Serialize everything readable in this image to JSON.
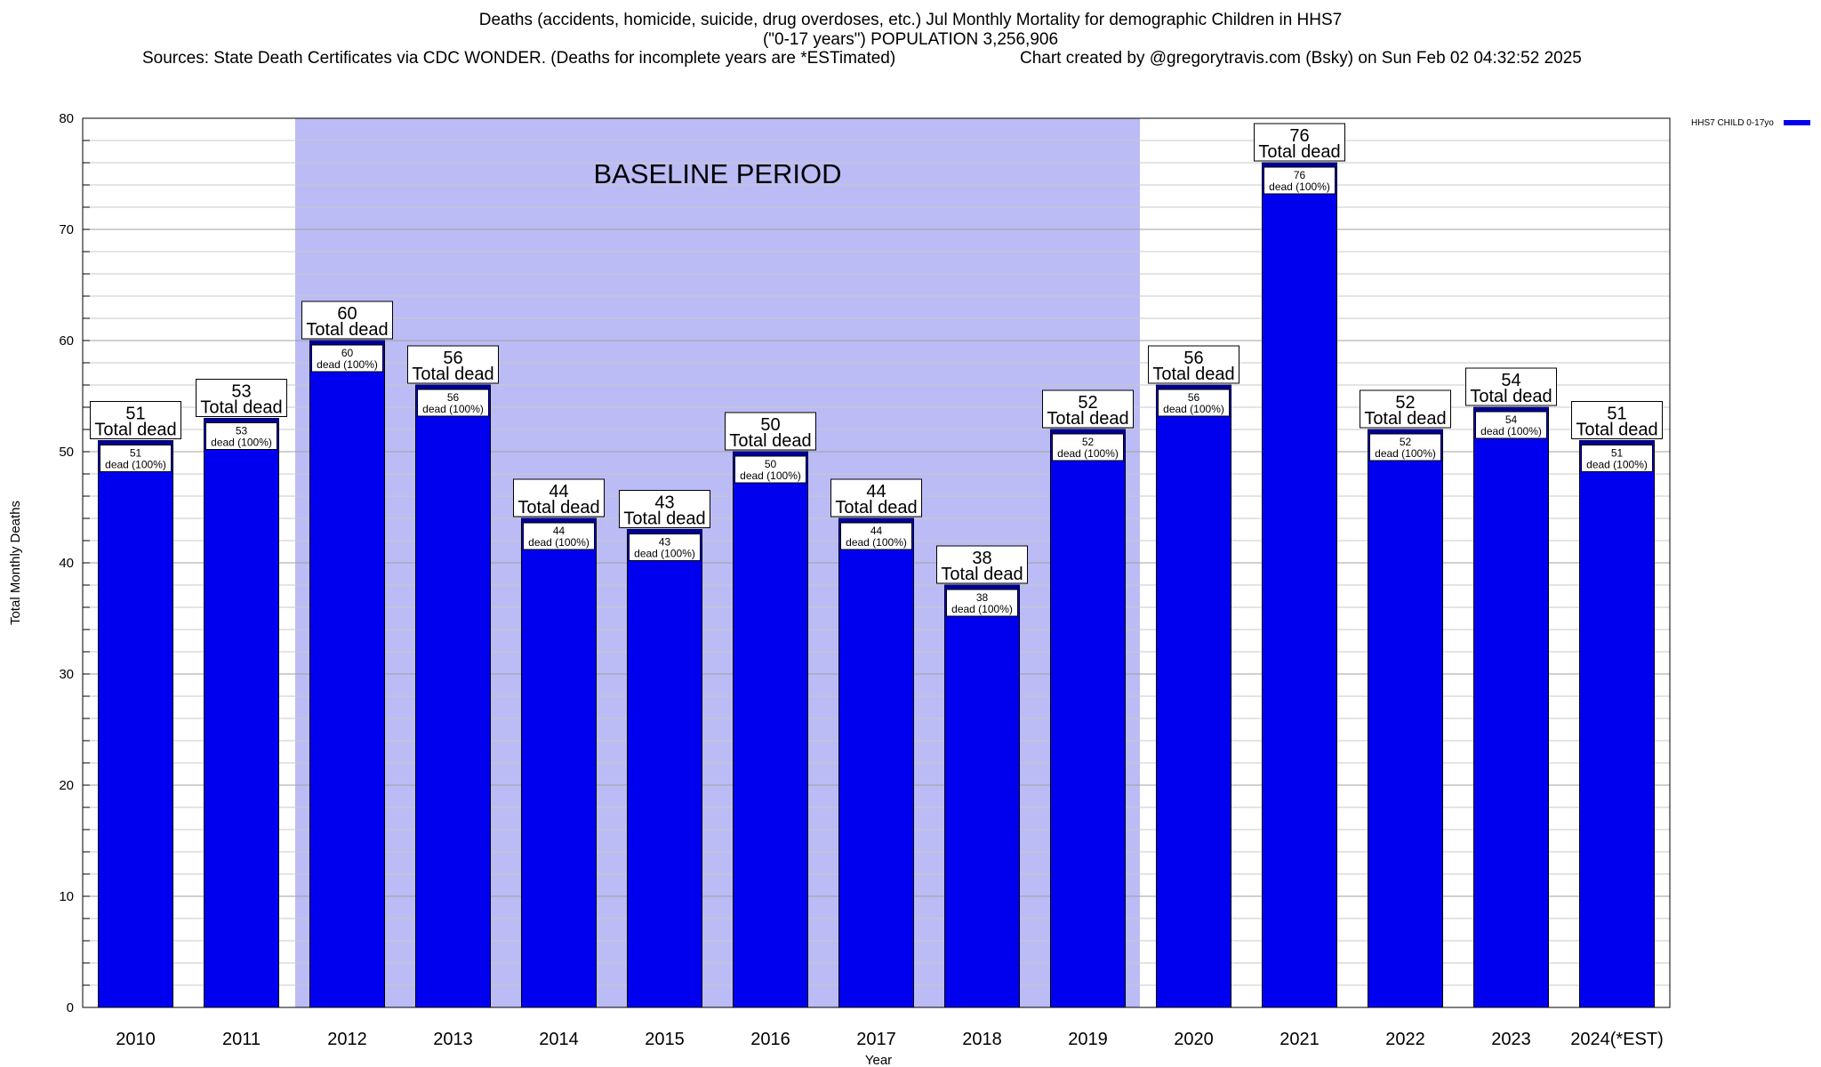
{
  "header": {
    "title_line1": "Deaths (accidents, homicide, suicide, drug overdoses, etc.) Jul Monthly Mortality for demographic Children in HHS7",
    "title_line2": "(\"0-17 years\") POPULATION 3,256,906",
    "sources": "Sources: State Death Certificates via CDC WONDER. (Deaths for incomplete years are *ESTimated)",
    "credit": "Chart created by @gregorytravis.com (Bsky) on Sun Feb 02 04:32:52 2025"
  },
  "chart_data": {
    "type": "bar",
    "xlabel": "Year",
    "ylabel": "Total Monthly Deaths",
    "ylim": [
      0,
      80
    ],
    "y_ticks": [
      0,
      10,
      20,
      30,
      40,
      50,
      60,
      70,
      80
    ],
    "y_minor_step": 2,
    "grid": true,
    "legend_position": "top-right",
    "categories": [
      "2010",
      "2011",
      "2012",
      "2013",
      "2014",
      "2015",
      "2016",
      "2017",
      "2018",
      "2019",
      "2020",
      "2021",
      "2022",
      "2023",
      "2024(*EST)"
    ],
    "series": [
      {
        "name": "HHS7 CHILD 0-17yo",
        "color": "#0000ee",
        "values": [
          51,
          53,
          60,
          56,
          44,
          43,
          50,
          44,
          38,
          52,
          56,
          76,
          52,
          54,
          51
        ]
      }
    ],
    "label_total_text": "Total dead",
    "label_inner_text": "dead (100%)",
    "baseline": {
      "label": "BASELINE PERIOD",
      "start": "2012",
      "end": "2019",
      "color": "#bbbbf5"
    },
    "bar_cap_color": "#000099"
  }
}
